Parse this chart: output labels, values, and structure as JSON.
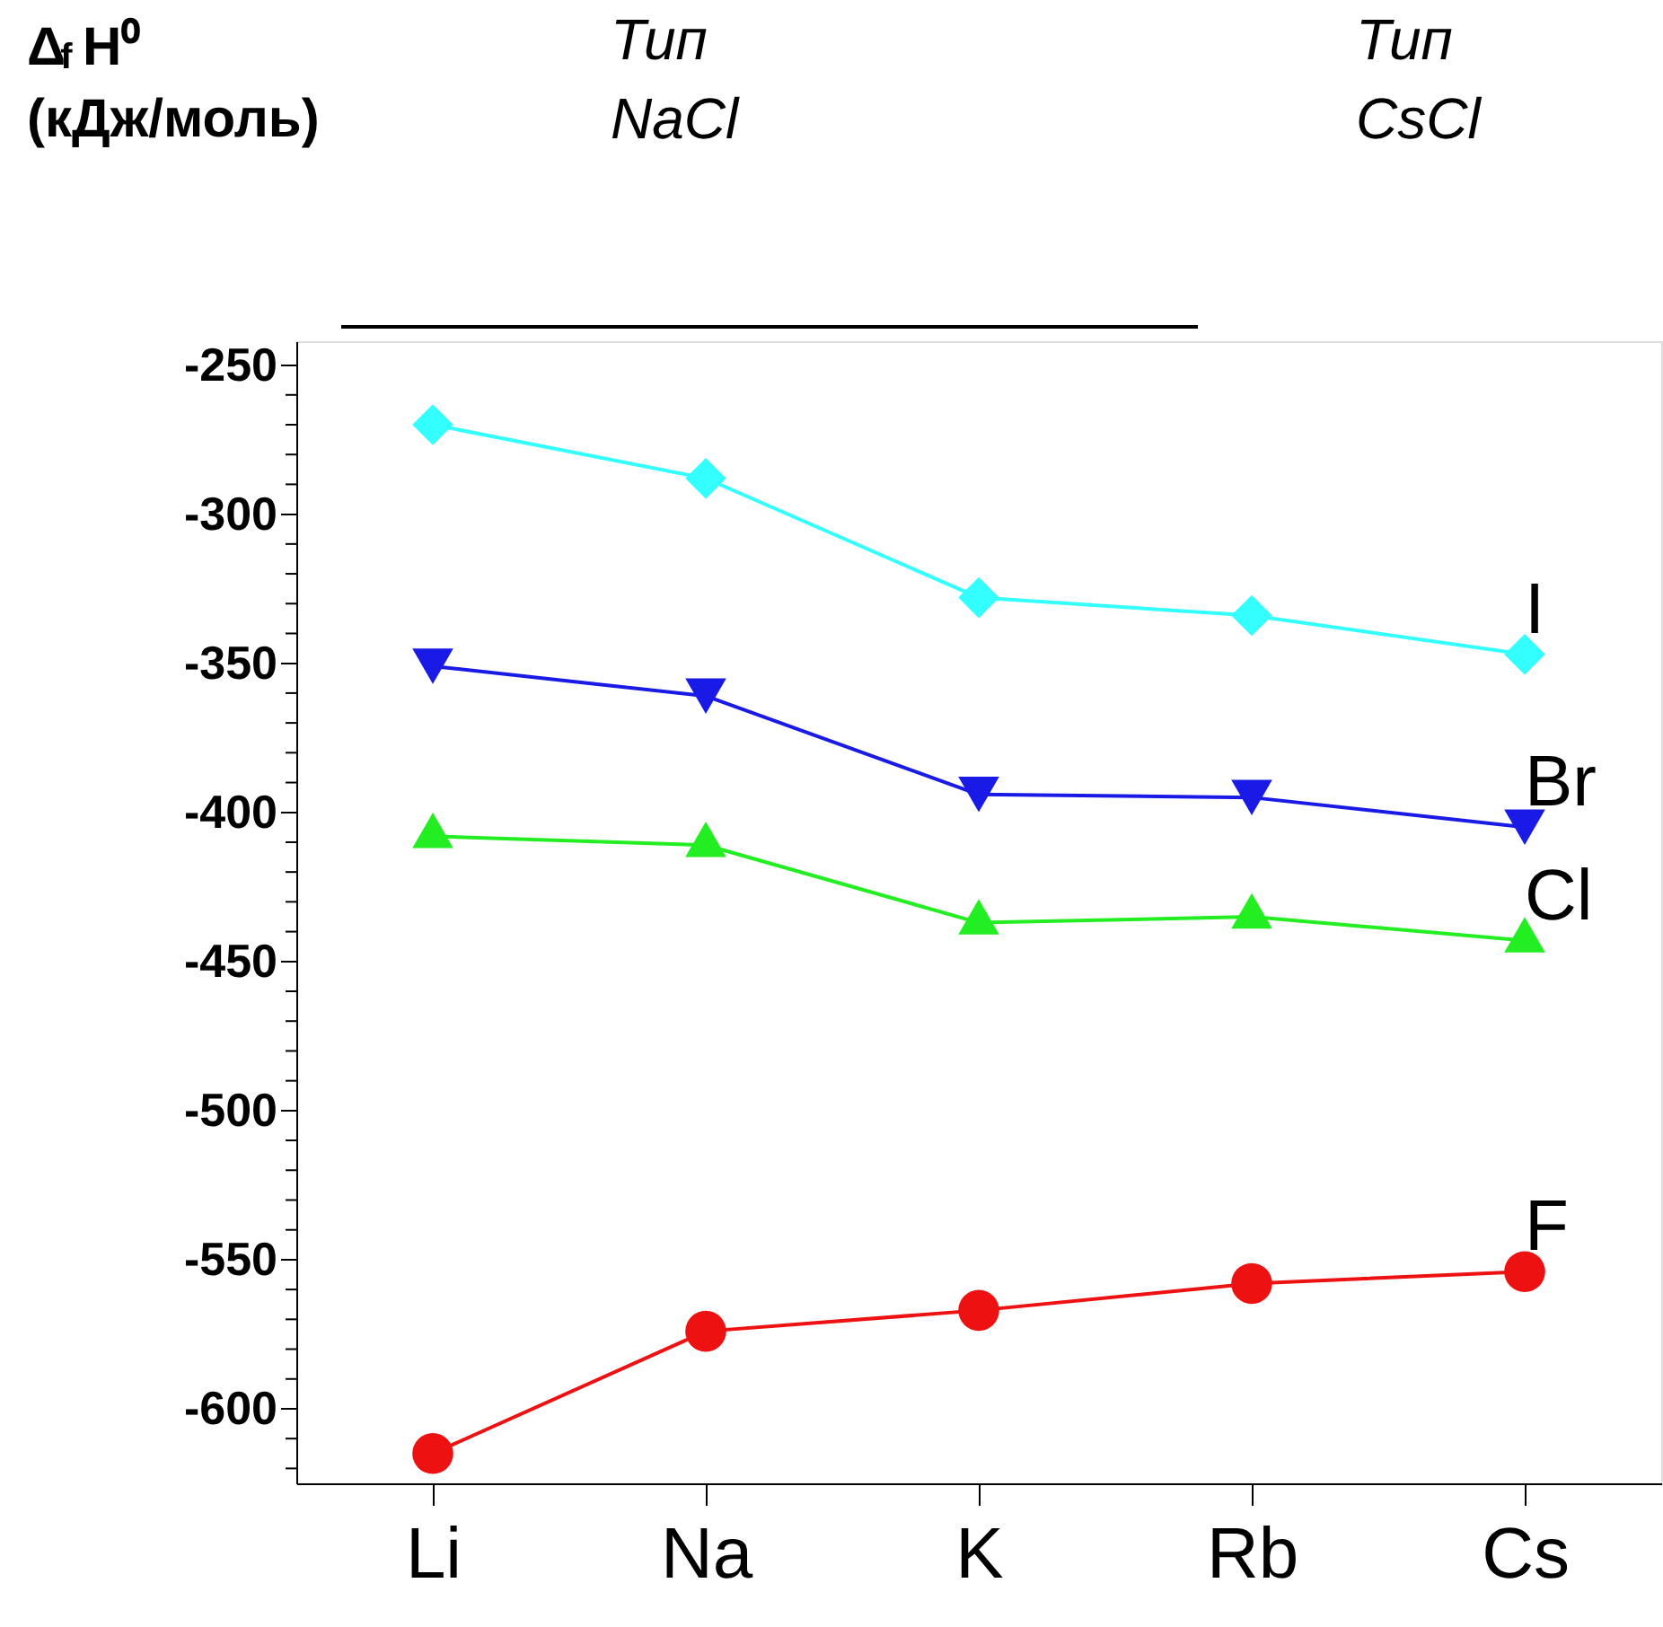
{
  "chart_data": {
    "type": "line",
    "ylabel": "Δ$_{f}$H⁰\n(кДж/моль)",
    "annotations": [
      "Тип\nNaCl",
      "Тип\nCsCl"
    ],
    "categories": [
      "Li",
      "Na",
      "K",
      "Rb",
      "Cs"
    ],
    "series": [
      {
        "name": "I",
        "color": "#33ffff",
        "marker": "diamond",
        "values": [
          -270,
          -288,
          -328,
          -334,
          -347
        ]
      },
      {
        "name": "Br",
        "color": "#1a1ae6",
        "marker": "triangle-down",
        "values": [
          -351,
          -361,
          -394,
          -395,
          -405
        ]
      },
      {
        "name": "Cl",
        "color": "#22ee22",
        "marker": "triangle",
        "values": [
          -408,
          -411,
          -437,
          -435,
          -443
        ]
      },
      {
        "name": "F",
        "color": "#ee1111",
        "marker": "circle",
        "values": [
          -615,
          -574,
          -567,
          -558,
          -554
        ]
      }
    ],
    "ylim": [
      -625,
      -242
    ],
    "yticks": [
      -250,
      -300,
      -350,
      -400,
      -450,
      -500,
      -550,
      -600,
      {
        "value": -260,
        "label": null
      },
      {
        "value": -270,
        "label": null
      },
      {
        "value": -280,
        "label": null
      },
      {
        "value": -290,
        "label": null
      },
      {
        "value": -310,
        "label": null
      },
      {
        "value": -320,
        "label": null
      },
      {
        "value": -330,
        "label": null
      },
      {
        "value": -340,
        "label": null
      },
      {
        "value": -360,
        "label": null
      },
      {
        "value": -370,
        "label": null
      },
      {
        "value": -380,
        "label": null
      },
      {
        "value": -390,
        "label": null
      },
      {
        "value": -410,
        "label": null
      },
      {
        "value": -420,
        "label": null
      },
      {
        "value": -430,
        "label": null
      },
      {
        "value": -440,
        "label": null
      },
      {
        "value": -460,
        "label": null
      },
      {
        "value": -470,
        "label": null
      },
      {
        "value": -480,
        "label": null
      },
      {
        "value": -490,
        "label": null
      },
      {
        "value": -510,
        "label": null
      },
      {
        "value": -520,
        "label": null
      },
      {
        "value": -530,
        "label": null
      },
      {
        "value": -540,
        "label": null
      },
      {
        "value": -560,
        "label": null
      },
      {
        "value": -570,
        "label": null
      },
      {
        "value": -580,
        "label": null
      },
      {
        "value": -590,
        "label": null
      },
      {
        "value": -610,
        "label": null
      },
      {
        "value": -620,
        "label": null
      }
    ],
    "grid": false,
    "legend": false,
    "line_style": "solid"
  }
}
